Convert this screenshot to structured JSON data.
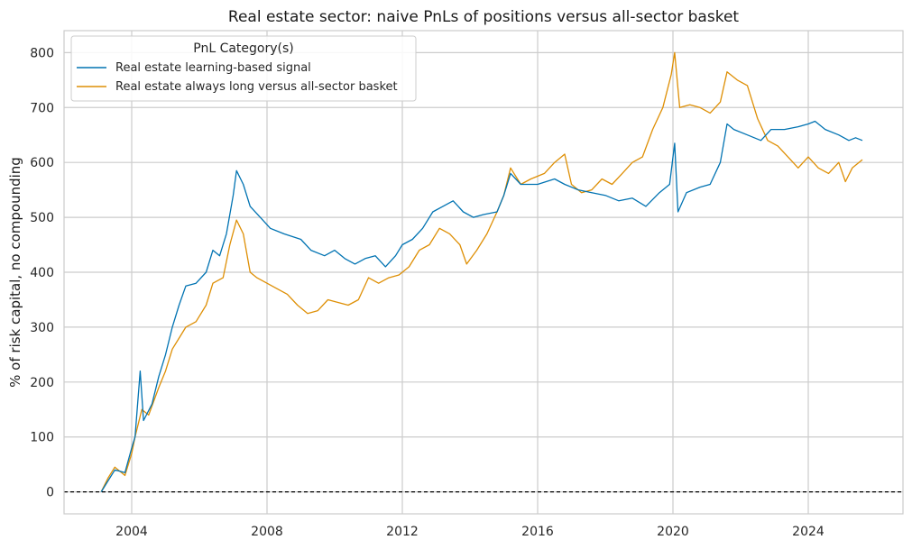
{
  "chart_data": {
    "type": "line",
    "title": "Real estate sector: naive PnLs of positions versus all-sector basket",
    "xlabel": "",
    "ylabel": "% of risk capital, no compounding",
    "xlim": [
      2002.0,
      2026.8
    ],
    "ylim": [
      -40,
      840
    ],
    "x_ticks": [
      2004,
      2008,
      2012,
      2016,
      2020,
      2024
    ],
    "x_tick_labels": [
      "2004",
      "2008",
      "2012",
      "2016",
      "2020",
      "2024"
    ],
    "y_ticks": [
      0,
      100,
      200,
      300,
      400,
      500,
      600,
      700,
      800
    ],
    "y_tick_labels": [
      "0",
      "100",
      "200",
      "300",
      "400",
      "500",
      "600",
      "700",
      "800"
    ],
    "grid": true,
    "reference_line": {
      "y": 0,
      "style": "dashed",
      "color": "#000000"
    },
    "legend": {
      "title": "PnL Category(s)",
      "placement": "top-left"
    },
    "series": [
      {
        "name": "Real estate learning-based signal",
        "color": "#0173b2",
        "points": [
          [
            2003.1,
            0
          ],
          [
            2003.3,
            20
          ],
          [
            2003.5,
            40
          ],
          [
            2003.8,
            35
          ],
          [
            2004.0,
            80
          ],
          [
            2004.1,
            100
          ],
          [
            2004.25,
            220
          ],
          [
            2004.35,
            130
          ],
          [
            2004.6,
            160
          ],
          [
            2004.8,
            210
          ],
          [
            2005.0,
            250
          ],
          [
            2005.2,
            300
          ],
          [
            2005.4,
            340
          ],
          [
            2005.6,
            375
          ],
          [
            2005.9,
            380
          ],
          [
            2006.2,
            400
          ],
          [
            2006.4,
            440
          ],
          [
            2006.6,
            430
          ],
          [
            2006.8,
            470
          ],
          [
            2007.0,
            540
          ],
          [
            2007.1,
            585
          ],
          [
            2007.3,
            560
          ],
          [
            2007.5,
            520
          ],
          [
            2007.8,
            500
          ],
          [
            2008.1,
            480
          ],
          [
            2008.5,
            470
          ],
          [
            2009.0,
            460
          ],
          [
            2009.3,
            440
          ],
          [
            2009.7,
            430
          ],
          [
            2010.0,
            440
          ],
          [
            2010.3,
            425
          ],
          [
            2010.6,
            415
          ],
          [
            2010.9,
            425
          ],
          [
            2011.2,
            430
          ],
          [
            2011.5,
            410
          ],
          [
            2011.8,
            430
          ],
          [
            2012.0,
            450
          ],
          [
            2012.3,
            460
          ],
          [
            2012.6,
            480
          ],
          [
            2012.9,
            510
          ],
          [
            2013.2,
            520
          ],
          [
            2013.5,
            530
          ],
          [
            2013.8,
            510
          ],
          [
            2014.1,
            500
          ],
          [
            2014.4,
            505
          ],
          [
            2014.8,
            510
          ],
          [
            2015.0,
            540
          ],
          [
            2015.2,
            580
          ],
          [
            2015.5,
            560
          ],
          [
            2016.0,
            560
          ],
          [
            2016.5,
            570
          ],
          [
            2016.8,
            560
          ],
          [
            2017.2,
            550
          ],
          [
            2017.6,
            545
          ],
          [
            2018.0,
            540
          ],
          [
            2018.4,
            530
          ],
          [
            2018.8,
            535
          ],
          [
            2019.2,
            520
          ],
          [
            2019.6,
            545
          ],
          [
            2019.9,
            560
          ],
          [
            2020.05,
            635
          ],
          [
            2020.15,
            510
          ],
          [
            2020.4,
            545
          ],
          [
            2020.8,
            555
          ],
          [
            2021.1,
            560
          ],
          [
            2021.4,
            600
          ],
          [
            2021.6,
            670
          ],
          [
            2021.8,
            660
          ],
          [
            2022.2,
            650
          ],
          [
            2022.6,
            640
          ],
          [
            2022.9,
            660
          ],
          [
            2023.3,
            660
          ],
          [
            2023.7,
            665
          ],
          [
            2024.0,
            670
          ],
          [
            2024.2,
            675
          ],
          [
            2024.5,
            660
          ],
          [
            2024.9,
            650
          ],
          [
            2025.2,
            640
          ],
          [
            2025.4,
            645
          ],
          [
            2025.6,
            640
          ]
        ]
      },
      {
        "name": "Real estate always long versus all-sector basket",
        "color": "#de8f05",
        "points": [
          [
            2003.1,
            0
          ],
          [
            2003.3,
            25
          ],
          [
            2003.5,
            45
          ],
          [
            2003.8,
            30
          ],
          [
            2004.0,
            70
          ],
          [
            2004.1,
            100
          ],
          [
            2004.3,
            150
          ],
          [
            2004.5,
            140
          ],
          [
            2004.8,
            190
          ],
          [
            2005.0,
            220
          ],
          [
            2005.2,
            260
          ],
          [
            2005.4,
            280
          ],
          [
            2005.6,
            300
          ],
          [
            2005.9,
            310
          ],
          [
            2006.2,
            340
          ],
          [
            2006.4,
            380
          ],
          [
            2006.7,
            390
          ],
          [
            2006.9,
            450
          ],
          [
            2007.1,
            495
          ],
          [
            2007.3,
            470
          ],
          [
            2007.5,
            400
          ],
          [
            2007.7,
            390
          ],
          [
            2008.0,
            380
          ],
          [
            2008.3,
            370
          ],
          [
            2008.6,
            360
          ],
          [
            2008.9,
            340
          ],
          [
            2009.2,
            325
          ],
          [
            2009.5,
            330
          ],
          [
            2009.8,
            350
          ],
          [
            2010.1,
            345
          ],
          [
            2010.4,
            340
          ],
          [
            2010.7,
            350
          ],
          [
            2011.0,
            390
          ],
          [
            2011.3,
            380
          ],
          [
            2011.6,
            390
          ],
          [
            2011.9,
            395
          ],
          [
            2012.2,
            410
          ],
          [
            2012.5,
            440
          ],
          [
            2012.8,
            450
          ],
          [
            2013.1,
            480
          ],
          [
            2013.4,
            470
          ],
          [
            2013.7,
            450
          ],
          [
            2013.9,
            415
          ],
          [
            2014.2,
            440
          ],
          [
            2014.5,
            470
          ],
          [
            2014.8,
            510
          ],
          [
            2015.0,
            540
          ],
          [
            2015.2,
            590
          ],
          [
            2015.5,
            560
          ],
          [
            2015.8,
            570
          ],
          [
            2016.2,
            580
          ],
          [
            2016.5,
            600
          ],
          [
            2016.8,
            615
          ],
          [
            2017.0,
            560
          ],
          [
            2017.3,
            545
          ],
          [
            2017.6,
            550
          ],
          [
            2017.9,
            570
          ],
          [
            2018.2,
            560
          ],
          [
            2018.5,
            580
          ],
          [
            2018.8,
            600
          ],
          [
            2019.1,
            610
          ],
          [
            2019.4,
            660
          ],
          [
            2019.7,
            700
          ],
          [
            2019.95,
            760
          ],
          [
            2020.05,
            800
          ],
          [
            2020.2,
            700
          ],
          [
            2020.5,
            705
          ],
          [
            2020.8,
            700
          ],
          [
            2021.1,
            690
          ],
          [
            2021.4,
            710
          ],
          [
            2021.6,
            765
          ],
          [
            2021.9,
            750
          ],
          [
            2022.2,
            740
          ],
          [
            2022.5,
            680
          ],
          [
            2022.8,
            640
          ],
          [
            2023.1,
            630
          ],
          [
            2023.4,
            610
          ],
          [
            2023.7,
            590
          ],
          [
            2024.0,
            610
          ],
          [
            2024.3,
            590
          ],
          [
            2024.6,
            580
          ],
          [
            2024.9,
            600
          ],
          [
            2025.1,
            565
          ],
          [
            2025.3,
            590
          ],
          [
            2025.6,
            605
          ]
        ]
      }
    ]
  }
}
